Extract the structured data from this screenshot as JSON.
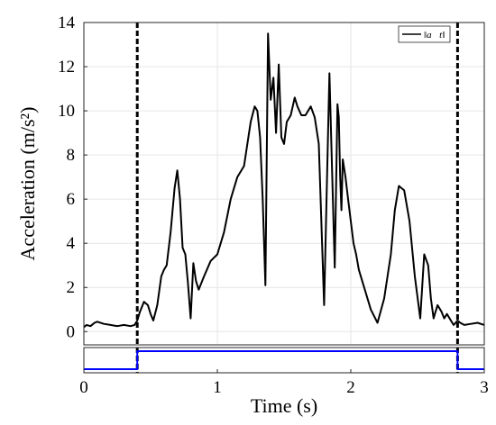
{
  "chart_data": [
    {
      "type": "line",
      "xlabel": "",
      "ylabel": "Acceleration (m/s²)",
      "xlim": [
        0,
        3
      ],
      "ylim": [
        -0.6,
        14
      ],
      "yticks": [
        0,
        2,
        4,
        6,
        8,
        10,
        12,
        14
      ],
      "ytick_labels": [
        "0",
        "2",
        "4",
        "6",
        "8",
        "10",
        "12",
        "14"
      ],
      "grid": true,
      "legend_position": "top-right",
      "vlines": [
        {
          "x": 0.4,
          "style": "dashed",
          "color": "#000000"
        },
        {
          "x": 2.8,
          "style": "dashed",
          "color": "#000000"
        }
      ],
      "series": [
        {
          "name": "‖a⃗t‖",
          "color": "#000000",
          "x": [
            0,
            0.02,
            0.05,
            0.08,
            0.1,
            0.15,
            0.2,
            0.25,
            0.3,
            0.35,
            0.38,
            0.4,
            0.42,
            0.45,
            0.48,
            0.5,
            0.52,
            0.55,
            0.58,
            0.6,
            0.62,
            0.65,
            0.68,
            0.7,
            0.72,
            0.74,
            0.76,
            0.78,
            0.8,
            0.82,
            0.84,
            0.86,
            0.9,
            0.95,
            1.0,
            1.05,
            1.1,
            1.15,
            1.2,
            1.25,
            1.28,
            1.3,
            1.32,
            1.34,
            1.36,
            1.38,
            1.4,
            1.42,
            1.44,
            1.46,
            1.48,
            1.5,
            1.52,
            1.55,
            1.58,
            1.6,
            1.63,
            1.66,
            1.7,
            1.73,
            1.76,
            1.8,
            1.84,
            1.86,
            1.88,
            1.9,
            1.91,
            1.92,
            1.93,
            1.94,
            1.96,
            1.98,
            2.0,
            2.02,
            2.04,
            2.06,
            2.1,
            2.15,
            2.2,
            2.25,
            2.3,
            2.33,
            2.36,
            2.4,
            2.44,
            2.48,
            2.52,
            2.55,
            2.58,
            2.6,
            2.62,
            2.63,
            2.65,
            2.68,
            2.7,
            2.72,
            2.75,
            2.77,
            2.8,
            2.82,
            2.85,
            2.9,
            2.95,
            3.0
          ],
          "values": [
            0.2,
            0.3,
            0.25,
            0.4,
            0.45,
            0.35,
            0.3,
            0.25,
            0.3,
            0.25,
            0.3,
            0.5,
            0.9,
            1.35,
            1.2,
            0.8,
            0.5,
            1.2,
            2.5,
            2.8,
            3.0,
            4.5,
            6.5,
            7.3,
            6.0,
            3.8,
            3.5,
            2.2,
            0.6,
            3.1,
            2.3,
            1.9,
            2.5,
            3.2,
            3.5,
            4.5,
            6.0,
            7.0,
            7.5,
            9.5,
            10.2,
            10.0,
            8.8,
            6.0,
            2.1,
            13.5,
            10.5,
            11.5,
            9.0,
            12.1,
            8.8,
            8.5,
            9.5,
            9.8,
            10.6,
            10.2,
            9.8,
            9.8,
            10.2,
            9.7,
            8.5,
            1.2,
            11.7,
            7.2,
            2.9,
            10.3,
            9.7,
            7.0,
            5.5,
            7.8,
            7.0,
            6.0,
            5.0,
            4.0,
            3.5,
            2.8,
            2.0,
            1.0,
            0.4,
            1.5,
            3.5,
            5.5,
            6.6,
            6.4,
            5.0,
            2.5,
            0.6,
            3.5,
            3.0,
            1.5,
            0.6,
            0.8,
            1.2,
            0.9,
            0.6,
            0.8,
            0.5,
            0.3,
            0.5,
            0.4,
            0.3,
            0.35,
            0.4,
            0.3
          ]
        }
      ]
    },
    {
      "type": "line",
      "xlabel": "Time (s)",
      "ylabel": "",
      "xlim": [
        0,
        3
      ],
      "ylim": [
        -0.2,
        1.2
      ],
      "xticks": [
        0,
        1,
        2,
        3
      ],
      "xtick_labels": [
        "0",
        "1",
        "2",
        "3"
      ],
      "grid": false,
      "series": [
        {
          "color": "#0000ff",
          "x": [
            0,
            0.4,
            0.4,
            2.8,
            2.8,
            3
          ],
          "values": [
            0,
            0,
            1,
            1,
            0,
            0
          ]
        }
      ]
    }
  ]
}
